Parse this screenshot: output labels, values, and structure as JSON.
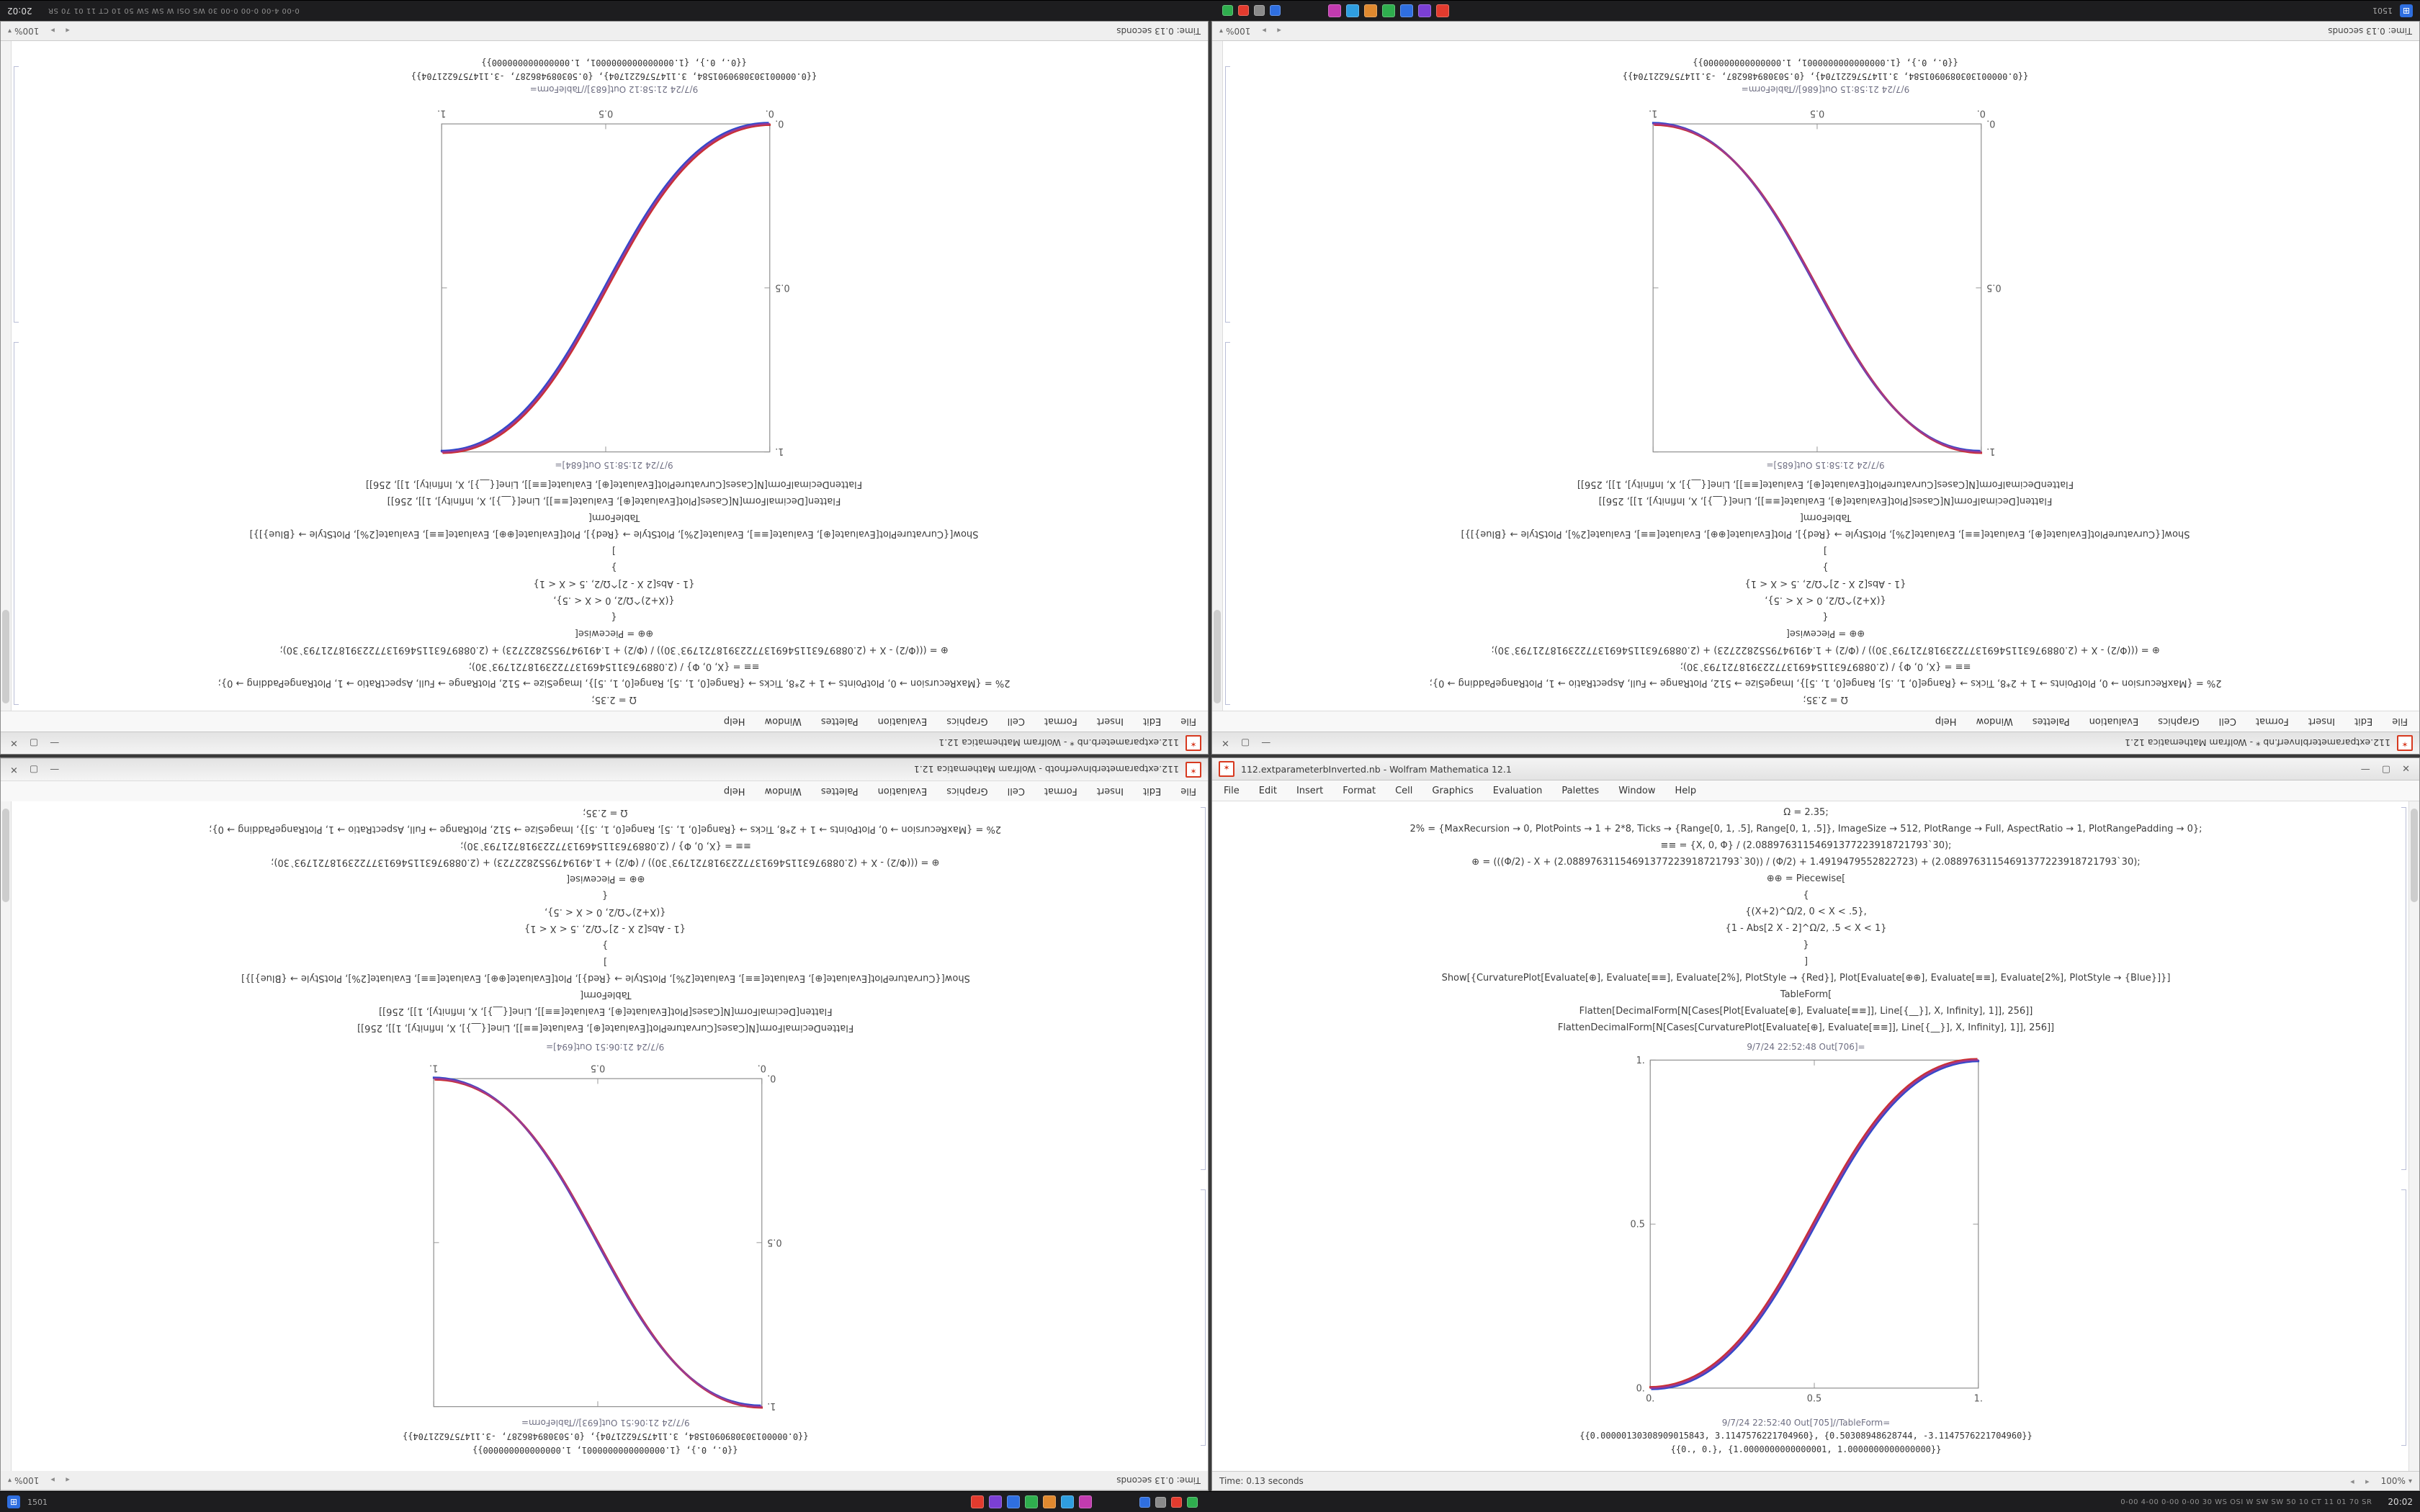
{
  "app_icon_glyph": "✶",
  "window_controls": {
    "minimize": "—",
    "maximize": "▢",
    "close": "✕"
  },
  "hscroll_glyphs": "◂ ▸",
  "zoom_caret": "▾",
  "plot_style": {
    "frame": "#8f8f8f",
    "tick": "#555555",
    "red": "#cc2f2f",
    "blue": "#2f49cc",
    "main": "#993a96"
  },
  "taskbar": {
    "start_glyph": "⊞",
    "start_label": "1501",
    "app_icons": [
      "#e23b2e",
      "#7b3fd4",
      "#2f6fe0",
      "#2fae4e",
      "#e0892f",
      "#2f9ee0",
      "#c23bb0"
    ],
    "tray_icons": [
      "#2f6fe0",
      "#8a8a8a",
      "#e23b2e",
      "#2fae4e"
    ],
    "right_text": "0-00 4-00 0-00 0-00 30 WS OSI W SW SW 50 10 CT 11 01 70 SR",
    "clock": "20:02"
  },
  "notebook": {
    "menu": [
      "File",
      "Edit",
      "Insert",
      "Format",
      "Cell",
      "Graphics",
      "Evaluation",
      "Palettes",
      "Window",
      "Help"
    ],
    "code_lines": [
      "Ω = 2.35;",
      "2% = {MaxRecursion → 0, PlotPoints → 1 + 2*8, Ticks → {Range[0, 1, .5], Range[0, 1, .5]}, ImageSize → 512, PlotRange → Full, AspectRatio → 1, PlotRangePadding → 0};",
      "≡≡ = {X, 0, Φ} / (2.08897631154691377223918721793`30);",
      "⊕ = (((Φ/2) - X + (2.08897631154691377223918721793`30)) / (Φ/2) + 1.4919479552822723) + (2.08897631154691377223918721793`30);",
      "⊕⊕ = Piecewise[",
      "{",
      "{(X+2)^Ω/2, 0 < X < .5},",
      "{1 - Abs[2 X - 2]^Ω/2, .5 < X < 1}",
      "}",
      "]",
      "Show[{CurvaturePlot[Evaluate[⊕], Evaluate[≡≡], Evaluate[2%], PlotStyle → {Red}], Plot[Evaluate[⊕⊕], Evaluate[≡≡], Evaluate[2%], PlotStyle → {Blue}]}]",
      "TableForm[",
      "Flatten[DecimalForm[N[Cases[Plot[Evaluate[⊕], Evaluate[≡≡]], Line[{__}], X, Infinity], 1]], 256]]",
      "FlattenDecimalForm[N[Cases[CurvaturePlot[Evaluate[⊕], Evaluate[≡≡]], Line[{__}], X, Infinity], 1]], 256]]"
    ]
  },
  "windows": [
    {
      "id": "top-left",
      "mode": "rotated",
      "title": "112.extparameterb.nb * - Wolfram Mathematica 12.1",
      "out_plot_label": "9/7/24 21:58:15 Out[684]=",
      "plot": {
        "direction": "increasing",
        "ticks": [
          "0.",
          "0.5",
          "1."
        ]
      },
      "out_table_label": "9/7/24 21:58:12 Out[683]//TableForm=",
      "result_lines": [
        "{{0.0000013030890901584, 3.1147576221704}, {0.503089486287, -3.1147576221704}}",
        "{{0., 0.}, {1.0000000000000001, 1.000000000000000}}"
      ],
      "status": "Time: 0.13 seconds",
      "zoom": "100%"
    },
    {
      "id": "top-right",
      "mode": "rotated",
      "title": "112.extparameterbInverf.nb * - Wolfram Mathematica 12.1",
      "out_plot_label": "9/7/24 21:58:15 Out[685]=",
      "plot": {
        "direction": "decreasing",
        "ticks": [
          "0.",
          "0.5",
          "1."
        ]
      },
      "out_table_label": "9/7/24 21:58:15 Out[686]//TableForm=",
      "result_lines": [
        "{{0.0000013030890901584, 3.1147576221704}, {0.503089486287, -3.1147576221704}}",
        "{{0., 0.}, {1.0000000000000001, 1.000000000000000}}"
      ],
      "status": "Time: 0.13 seconds",
      "zoom": "100%"
    },
    {
      "id": "bottom-left",
      "mode": "flip-rows",
      "title": "112.extparameterbInverfnotb - Wolfram Mathematica 12.1",
      "out_plot_label": "9/7/24 21:06:51 Out[694]=",
      "plot": {
        "direction": "decreasing",
        "ticks": [
          "0.",
          "0.5",
          "1."
        ]
      },
      "out_table_label": "9/7/24 21:06:51 Out[693]//TableForm=",
      "result_lines": [
        "{{0.0000013030890901584, 3.1147576221704}, {0.503089486287, -3.1147576221704}}",
        "{{0., 0.}, {1.0000000000000001, 1.000000000000000}}"
      ],
      "status": "Time: 0.13 seconds",
      "zoom": "100%"
    },
    {
      "id": "bottom-right",
      "mode": "upright",
      "title": "112.extparameterbInverted.nb - Wolfram Mathematica 12.1",
      "out_plot_label": "9/7/24 22:52:48 Out[706]=",
      "plot": {
        "direction": "increasing",
        "ticks": [
          "0.",
          "0.5",
          "1."
        ]
      },
      "out_table_label": "9/7/24 22:52:40 Out[705]//TableForm=",
      "result_lines": [
        "{{0.00000130308909015843, 3.1147576221704960}, {0.50308948628744, -3.1147576221704960}}",
        "{{0., 0.}, {1.0000000000000001, 1.0000000000000000}}"
      ],
      "status": "Time: 0.13 seconds",
      "zoom": "100%"
    }
  ]
}
